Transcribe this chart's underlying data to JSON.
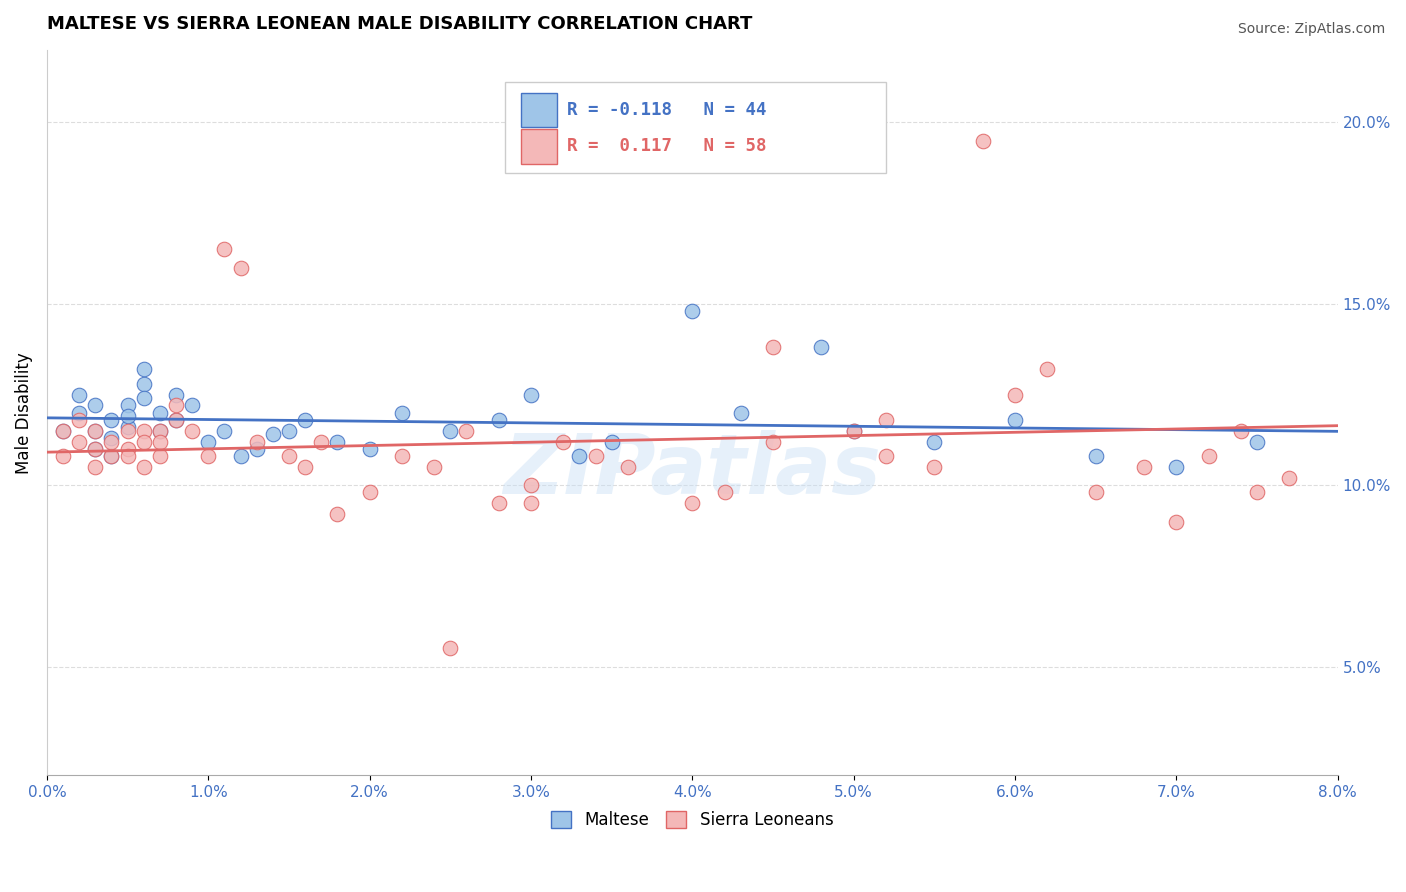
{
  "title": "MALTESE VS SIERRA LEONEAN MALE DISABILITY CORRELATION CHART",
  "source_text": "Source: ZipAtlas.com",
  "ylabel": "Male Disability",
  "x_ticks": [
    0.0,
    0.01,
    0.02,
    0.03,
    0.04,
    0.05,
    0.06,
    0.07,
    0.08
  ],
  "x_tick_labels": [
    "0.0%",
    "1.0%",
    "2.0%",
    "3.0%",
    "4.0%",
    "5.0%",
    "6.0%",
    "7.0%",
    "8.0%"
  ],
  "y_ticks_right": [
    0.05,
    0.1,
    0.15,
    0.2
  ],
  "y_tick_labels_right": [
    "5.0%",
    "10.0%",
    "15.0%",
    "20.0%"
  ],
  "xlim": [
    0.0,
    0.08
  ],
  "ylim": [
    0.02,
    0.22
  ],
  "maltese_color": "#9fc5e8",
  "sierra_color": "#f4b8b8",
  "maltese_edge_color": "#cc99cc",
  "sierra_edge_color": "#e06666",
  "maltese_line_color": "#4472c4",
  "sierra_line_color": "#e06666",
  "legend_R_maltese": "R = -0.118",
  "legend_N_maltese": "N = 44",
  "legend_R_sierra": "R =  0.117",
  "legend_N_sierra": "N = 58",
  "maltese_R": -0.118,
  "sierra_R": 0.117,
  "maltese_x": [
    0.001,
    0.002,
    0.002,
    0.003,
    0.003,
    0.003,
    0.004,
    0.004,
    0.004,
    0.005,
    0.005,
    0.005,
    0.006,
    0.006,
    0.006,
    0.007,
    0.007,
    0.008,
    0.008,
    0.009,
    0.01,
    0.011,
    0.012,
    0.013,
    0.014,
    0.015,
    0.016,
    0.018,
    0.02,
    0.022,
    0.025,
    0.028,
    0.03,
    0.033,
    0.035,
    0.04,
    0.043,
    0.048,
    0.05,
    0.055,
    0.06,
    0.065,
    0.07,
    0.075
  ],
  "maltese_y": [
    0.115,
    0.12,
    0.125,
    0.11,
    0.115,
    0.122,
    0.108,
    0.113,
    0.118,
    0.116,
    0.122,
    0.119,
    0.128,
    0.132,
    0.124,
    0.115,
    0.12,
    0.125,
    0.118,
    0.122,
    0.112,
    0.115,
    0.108,
    0.11,
    0.114,
    0.115,
    0.118,
    0.112,
    0.11,
    0.12,
    0.115,
    0.118,
    0.125,
    0.108,
    0.112,
    0.148,
    0.12,
    0.138,
    0.115,
    0.112,
    0.118,
    0.108,
    0.105,
    0.112
  ],
  "sierra_x": [
    0.001,
    0.001,
    0.002,
    0.002,
    0.003,
    0.003,
    0.003,
    0.004,
    0.004,
    0.005,
    0.005,
    0.005,
    0.006,
    0.006,
    0.006,
    0.007,
    0.007,
    0.007,
    0.008,
    0.008,
    0.009,
    0.01,
    0.011,
    0.012,
    0.013,
    0.015,
    0.016,
    0.017,
    0.018,
    0.02,
    0.022,
    0.024,
    0.026,
    0.028,
    0.03,
    0.032,
    0.034,
    0.036,
    0.04,
    0.042,
    0.045,
    0.05,
    0.052,
    0.055,
    0.058,
    0.045,
    0.06,
    0.062,
    0.065,
    0.068,
    0.07,
    0.072,
    0.074,
    0.052,
    0.03,
    0.025,
    0.075,
    0.077
  ],
  "sierra_y": [
    0.115,
    0.108,
    0.118,
    0.112,
    0.105,
    0.11,
    0.115,
    0.108,
    0.112,
    0.115,
    0.11,
    0.108,
    0.115,
    0.105,
    0.112,
    0.108,
    0.115,
    0.112,
    0.118,
    0.122,
    0.115,
    0.108,
    0.165,
    0.16,
    0.112,
    0.108,
    0.105,
    0.112,
    0.092,
    0.098,
    0.108,
    0.105,
    0.115,
    0.095,
    0.1,
    0.112,
    0.108,
    0.105,
    0.095,
    0.098,
    0.112,
    0.115,
    0.118,
    0.105,
    0.195,
    0.138,
    0.125,
    0.132,
    0.098,
    0.105,
    0.09,
    0.108,
    0.115,
    0.108,
    0.095,
    0.055,
    0.098,
    0.102
  ],
  "watermark": "ZIPatlas",
  "grid_color": "#dddddd",
  "background_color": "#ffffff"
}
